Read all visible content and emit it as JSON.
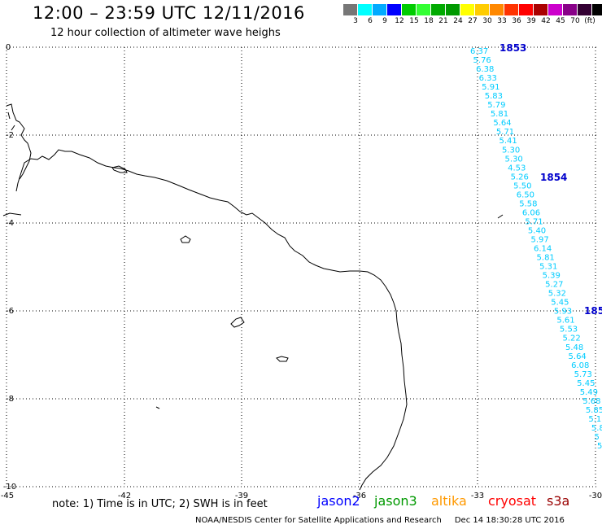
{
  "header": {
    "title": "12:00 – 23:59 UTC 12/11/2016",
    "subtitle": "12 hour collection of altimeter wave heighs"
  },
  "legend": {
    "colors": [
      "#777777",
      "#00ffff",
      "#00aaff",
      "#0000ff",
      "#00cc00",
      "#33ff33",
      "#00aa00",
      "#009900",
      "#ffff00",
      "#ffcc00",
      "#ff8800",
      "#ff3300",
      "#ff0000",
      "#aa0000",
      "#cc00cc",
      "#880088",
      "#330033",
      "#000000"
    ],
    "labels": [
      "3",
      "6",
      "9",
      "12",
      "15",
      "18",
      "21",
      "24",
      "27",
      "30",
      "33",
      "36",
      "39",
      "42",
      "45",
      "70",
      "(ft)"
    ]
  },
  "map": {
    "x_ticks": [
      "-45",
      "-42",
      "-39",
      "-36",
      "-33",
      "-30"
    ],
    "y_ticks": [
      "0",
      "-2",
      "-4",
      "-6",
      "-8",
      "-10"
    ],
    "track_times": [
      "1853",
      "1854",
      "185"
    ],
    "track_color": "#00ccff",
    "time_color": "#0000cc",
    "swh_values": [
      "6.37",
      "5.76",
      "6.38",
      "6.33",
      "5.91",
      "5.83",
      "5.79",
      "5.81",
      "5.64",
      "5.71",
      "5.41",
      "5.30",
      "5.30",
      "4.53",
      "5.26",
      "5.50",
      "6.50",
      "5.58",
      "6.06",
      "5.71",
      "5.40",
      "5.97",
      "6.14",
      "5.81",
      "5.31",
      "5.39",
      "5.27",
      "5.32",
      "5.45",
      "5.93",
      "5.61",
      "5.53",
      "5.22",
      "5.48",
      "5.64",
      "6.08",
      "5.73",
      "5.45",
      "5.49",
      "5.68",
      "5.85",
      "5.1",
      "5.8",
      "5",
      "5"
    ]
  },
  "footer": {
    "note": "note: 1) Time is in UTC; 2) SWH is in feet",
    "satellites": [
      {
        "name": "jason2",
        "color": "#0000ff"
      },
      {
        "name": "jason3",
        "color": "#009900"
      },
      {
        "name": "altika",
        "color": "#ff9900"
      },
      {
        "name": "cryosat",
        "color": "#ff0000"
      },
      {
        "name": "s3a",
        "color": "#990000"
      }
    ],
    "credit": "NOAA/NESDIS Center for Satellite Applications and Research",
    "timestamp": "Dec 14 18:30:28 UTC 2016"
  }
}
